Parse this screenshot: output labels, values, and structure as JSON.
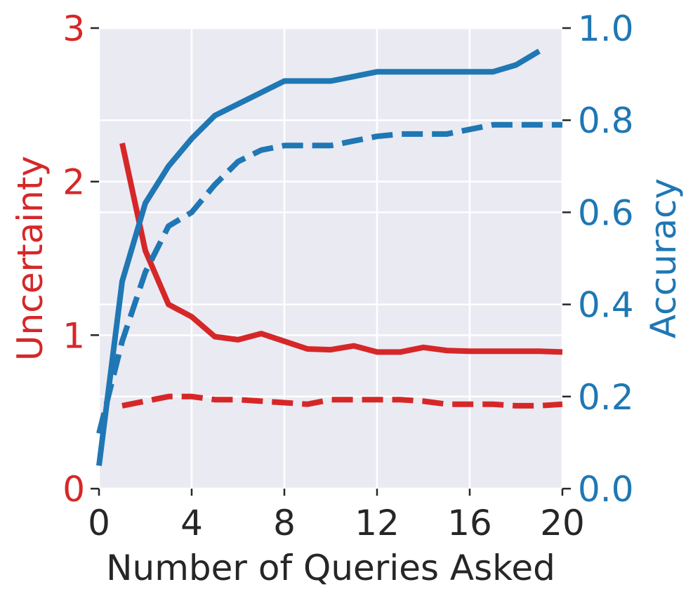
{
  "chart_data": {
    "type": "line",
    "title": "",
    "xlabel": "Number of Queries Asked",
    "ylabel_left": "Uncertainty",
    "ylabel_right": "Accuracy",
    "xlim": [
      0,
      20
    ],
    "ylim_left": [
      0,
      3
    ],
    "ylim_right": [
      0.0,
      1.0
    ],
    "x_ticks": [
      "0",
      "4",
      "8",
      "12",
      "16",
      "20"
    ],
    "y_left_ticks": [
      "0",
      "1",
      "2",
      "3"
    ],
    "y_right_ticks": [
      "0.0",
      "0.2",
      "0.4",
      "0.6",
      "0.8",
      "1.0"
    ],
    "grid": true,
    "colors": {
      "uncertainty": "#d62728",
      "accuracy": "#1f77b4",
      "plot_bg": "#eaeaf2",
      "grid": "#ffffff",
      "tick_text": "#262626"
    },
    "series": [
      {
        "axis": "left",
        "style": "solid",
        "color": "#d62728",
        "x": [
          1,
          2,
          3,
          4,
          5,
          6,
          7,
          8,
          9,
          10,
          11,
          12,
          13,
          14,
          15,
          16,
          17,
          18,
          19,
          20
        ],
        "y": [
          2.25,
          1.55,
          1.2,
          1.12,
          0.99,
          0.97,
          1.01,
          0.96,
          0.91,
          0.905,
          0.93,
          0.89,
          0.89,
          0.92,
          0.9,
          0.895,
          0.895,
          0.895,
          0.895,
          0.89
        ]
      },
      {
        "axis": "left",
        "style": "dashed",
        "color": "#d62728",
        "x": [
          1,
          2,
          3,
          4,
          5,
          6,
          7,
          8,
          9,
          10,
          11,
          12,
          13,
          14,
          15,
          16,
          17,
          18,
          19,
          20
        ],
        "y": [
          0.54,
          0.57,
          0.6,
          0.6,
          0.58,
          0.58,
          0.57,
          0.56,
          0.55,
          0.58,
          0.58,
          0.58,
          0.58,
          0.57,
          0.55,
          0.55,
          0.55,
          0.54,
          0.54,
          0.55
        ]
      },
      {
        "axis": "right",
        "style": "solid",
        "color": "#1f77b4",
        "x": [
          0,
          1,
          2,
          3,
          4,
          5,
          6,
          7,
          8,
          9,
          10,
          11,
          12,
          13,
          14,
          15,
          16,
          17,
          18,
          19
        ],
        "y": [
          0.05,
          0.45,
          0.62,
          0.7,
          0.76,
          0.81,
          0.835,
          0.86,
          0.885,
          0.885,
          0.885,
          0.895,
          0.905,
          0.905,
          0.905,
          0.905,
          0.905,
          0.905,
          0.92,
          0.95
        ]
      },
      {
        "axis": "right",
        "style": "dashed",
        "color": "#1f77b4",
        "x": [
          0,
          1,
          2,
          3,
          4,
          5,
          6,
          7,
          8,
          9,
          10,
          11,
          12,
          13,
          14,
          15,
          16,
          17,
          18,
          19,
          20
        ],
        "y": [
          0.12,
          0.32,
          0.47,
          0.57,
          0.6,
          0.66,
          0.71,
          0.735,
          0.745,
          0.745,
          0.745,
          0.755,
          0.765,
          0.77,
          0.77,
          0.77,
          0.78,
          0.79,
          0.79,
          0.79,
          0.79
        ]
      }
    ]
  }
}
